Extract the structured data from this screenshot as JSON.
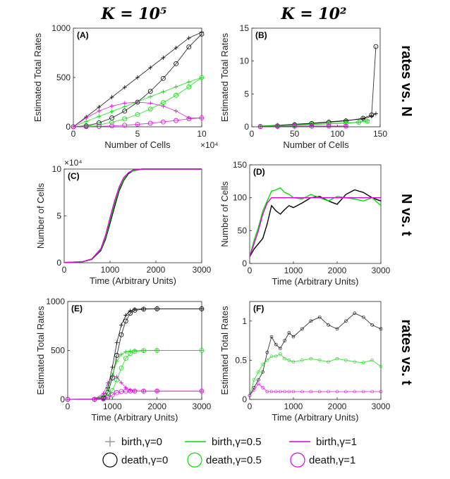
{
  "colors": {
    "gamma0": "#000000",
    "gamma05": "#00e000",
    "gamma1": "#e000e0"
  },
  "headers": {
    "col_left": "K = 10⁵",
    "col_right": "K = 10²"
  },
  "row_labels": [
    "rates vs. N",
    "N vs. t",
    "rates vs. t"
  ],
  "legend": {
    "birth": [
      "birth,γ=0",
      "birth,γ=0.5",
      "birth,γ=1"
    ],
    "death": [
      "death,γ=0",
      "death,γ=0.5",
      "death,γ=1"
    ]
  },
  "chart_data": [
    {
      "panel": "(A)",
      "type": "scatter",
      "xlabel": "Number of Cells",
      "ylabel": "Estimated Total Rates",
      "xlim": [
        0,
        10
      ],
      "x_exponent_label": "×10⁴",
      "ylim": [
        0,
        1000
      ],
      "xticks": [
        0,
        5,
        10
      ],
      "yticks": [
        0,
        500,
        1000
      ],
      "series": [
        {
          "name": "birth,γ=0",
          "marker": "+",
          "x": [
            0,
            1,
            2,
            3,
            4,
            5,
            6,
            7,
            8,
            9,
            10
          ],
          "y": [
            0,
            100,
            200,
            300,
            400,
            500,
            600,
            700,
            800,
            900,
            960
          ]
        },
        {
          "name": "death,γ=0",
          "marker": "o",
          "x": [
            0,
            1,
            2,
            3,
            4,
            5,
            6,
            7,
            8,
            9,
            10
          ],
          "y": [
            0,
            10,
            40,
            90,
            160,
            250,
            360,
            490,
            640,
            810,
            940
          ]
        },
        {
          "name": "birth,γ=0.5",
          "marker": "+",
          "x": [
            0,
            1,
            2,
            3,
            4,
            5,
            6,
            7,
            8,
            9,
            10
          ],
          "y": [
            0,
            55,
            105,
            155,
            205,
            255,
            305,
            355,
            405,
            455,
            500
          ]
        },
        {
          "name": "death,γ=0.5",
          "marker": "o",
          "x": [
            0,
            1,
            2,
            3,
            4,
            5,
            6,
            7,
            8,
            9,
            10
          ],
          "y": [
            0,
            5,
            20,
            45,
            80,
            125,
            180,
            245,
            320,
            405,
            500
          ]
        },
        {
          "name": "birth,γ=1",
          "marker": "+",
          "x": [
            0,
            1,
            2,
            3,
            4,
            5,
            6,
            7,
            8,
            9,
            10
          ],
          "y": [
            0,
            90,
            160,
            210,
            240,
            250,
            240,
            210,
            160,
            90,
            90
          ]
        },
        {
          "name": "death,γ=1",
          "marker": "o",
          "x": [
            0,
            1,
            2,
            3,
            4,
            5,
            6,
            7,
            8,
            9,
            10
          ],
          "y": [
            0,
            1,
            4,
            9,
            16,
            25,
            36,
            49,
            64,
            81,
            90
          ]
        }
      ]
    },
    {
      "panel": "(B)",
      "type": "scatter",
      "xlabel": "Number of Cells",
      "ylabel": "Estimated Total Rates",
      "xlim": [
        0,
        150
      ],
      "ylim": [
        0,
        15
      ],
      "xticks": [
        0,
        50,
        100,
        150
      ],
      "yticks": [
        0,
        5,
        10,
        15
      ],
      "series": [
        {
          "name": "birth,γ=0",
          "marker": "+",
          "x": [
            10,
            30,
            50,
            70,
            90,
            110,
            130,
            140,
            145
          ],
          "y": [
            0.1,
            0.25,
            0.4,
            0.55,
            0.75,
            0.95,
            1.2,
            1.6,
            2.0
          ]
        },
        {
          "name": "death,γ=0",
          "marker": "o",
          "x": [
            10,
            30,
            50,
            70,
            90,
            110,
            130,
            140,
            145
          ],
          "y": [
            0.05,
            0.15,
            0.3,
            0.5,
            0.7,
            0.9,
            1.3,
            1.8,
            12.2
          ]
        },
        {
          "name": "birth,γ=0.5",
          "marker": "+",
          "x": [
            10,
            30,
            50,
            70,
            90,
            110,
            125,
            135
          ],
          "y": [
            0.1,
            0.2,
            0.3,
            0.4,
            0.5,
            0.6,
            0.7,
            0.9
          ]
        },
        {
          "name": "death,γ=0.5",
          "marker": "o",
          "x": [
            10,
            30,
            50,
            70,
            90,
            110,
            125,
            135
          ],
          "y": [
            0.05,
            0.1,
            0.2,
            0.3,
            0.45,
            0.55,
            0.7,
            0.85
          ]
        },
        {
          "name": "birth,γ=1",
          "marker": "+",
          "x": [
            10,
            30,
            50,
            70,
            90,
            110
          ],
          "y": [
            0.05,
            0.08,
            0.1,
            0.1,
            0.1,
            0.1
          ]
        },
        {
          "name": "death,γ=1",
          "marker": "o",
          "x": [
            10,
            30,
            50,
            70,
            90,
            110
          ],
          "y": [
            0.02,
            0.05,
            0.08,
            0.09,
            0.1,
            0.1
          ]
        }
      ]
    },
    {
      "panel": "(C)",
      "type": "line",
      "xlabel": "Time (Arbitrary Units)",
      "ylabel": "Number of Cells",
      "xlim": [
        0,
        3000
      ],
      "ylim": [
        0,
        10
      ],
      "y_exponent_label": "×10⁴",
      "xticks": [
        0,
        1000,
        2000,
        3000
      ],
      "yticks": [
        0,
        5,
        10
      ],
      "series": [
        {
          "name": "γ=0",
          "x": [
            0,
            400,
            600,
            800,
            900,
            1000,
            1100,
            1200,
            1300,
            1400,
            1500,
            1700,
            2000,
            3000
          ],
          "y": [
            0.02,
            0.1,
            0.35,
            1.3,
            2.5,
            4.2,
            6.0,
            7.7,
            8.8,
            9.5,
            9.8,
            10,
            10,
            10
          ]
        },
        {
          "name": "γ=0.5",
          "x": [
            0,
            400,
            600,
            800,
            900,
            1000,
            1100,
            1200,
            1300,
            1400,
            1500,
            1700,
            2000,
            3000
          ],
          "y": [
            0.02,
            0.1,
            0.38,
            1.4,
            2.7,
            4.5,
            6.3,
            7.9,
            8.9,
            9.6,
            9.8,
            10,
            10,
            10
          ]
        },
        {
          "name": "γ=1",
          "x": [
            0,
            400,
            600,
            800,
            900,
            1000,
            1100,
            1200,
            1300,
            1400,
            1500,
            1700,
            2000,
            3000
          ],
          "y": [
            0.02,
            0.11,
            0.4,
            1.5,
            2.9,
            4.8,
            6.6,
            8.1,
            9.1,
            9.6,
            9.9,
            10,
            10,
            10
          ]
        }
      ]
    },
    {
      "panel": "(D)",
      "type": "line",
      "xlabel": "Time (Arbitrary Units)",
      "ylabel": "Number of Cells",
      "xlim": [
        0,
        3000
      ],
      "ylim": [
        0,
        150
      ],
      "xticks": [
        0,
        1000,
        2000,
        3000
      ],
      "yticks": [
        0,
        50,
        100,
        150
      ],
      "series": [
        {
          "name": "γ=0",
          "x": [
            0,
            100,
            200,
            300,
            400,
            500,
            600,
            700,
            800,
            900,
            1000,
            1200,
            1400,
            1600,
            1800,
            2000,
            2200,
            2400,
            2600,
            2800,
            3000
          ],
          "y": [
            10,
            22,
            30,
            38,
            60,
            88,
            80,
            75,
            82,
            88,
            85,
            92,
            100,
            102,
            95,
            90,
            105,
            112,
            108,
            100,
            95
          ]
        },
        {
          "name": "γ=0.5",
          "x": [
            0,
            100,
            200,
            300,
            400,
            500,
            600,
            700,
            800,
            900,
            1000,
            1200,
            1400,
            1600,
            1800,
            2000,
            2200,
            2400,
            2600,
            2800,
            3000
          ],
          "y": [
            10,
            35,
            55,
            80,
            95,
            110,
            112,
            115,
            108,
            105,
            100,
            98,
            105,
            100,
            95,
            102,
            100,
            98,
            95,
            100,
            88
          ]
        },
        {
          "name": "γ=1",
          "x": [
            0,
            100,
            200,
            300,
            400,
            500,
            600,
            700,
            800,
            900,
            1000,
            1200,
            1400,
            1600,
            1800,
            2000,
            2200,
            2400,
            2600,
            2800,
            3000
          ],
          "y": [
            10,
            30,
            50,
            75,
            92,
            100,
            100,
            100,
            100,
            100,
            100,
            100,
            100,
            100,
            100,
            100,
            100,
            100,
            100,
            100,
            100
          ]
        }
      ]
    },
    {
      "panel": "(E)",
      "type": "scatter",
      "xlabel": "Time (Arbitrary Units)",
      "ylabel": "Estimated Total Rates",
      "xlim": [
        0,
        3000
      ],
      "ylim": [
        0,
        1000
      ],
      "xticks": [
        0,
        1000,
        2000,
        3000
      ],
      "yticks": [
        0,
        500,
        1000
      ],
      "series": [
        {
          "name": "birth,γ=0",
          "marker": "+",
          "x": [
            0,
            600,
            800,
            900,
            1000,
            1100,
            1200,
            1300,
            1400,
            1500,
            1700,
            2000,
            3000
          ],
          "y": [
            0,
            5,
            30,
            120,
            330,
            580,
            760,
            860,
            905,
            920,
            925,
            925,
            925
          ]
        },
        {
          "name": "death,γ=0",
          "marker": "o",
          "x": [
            0,
            600,
            800,
            900,
            1000,
            1100,
            1200,
            1300,
            1400,
            1500,
            1700,
            2000,
            3000
          ],
          "y": [
            0,
            2,
            15,
            70,
            220,
            450,
            660,
            800,
            880,
            910,
            922,
            925,
            925
          ]
        },
        {
          "name": "birth,γ=0.5",
          "marker": "+",
          "x": [
            0,
            600,
            800,
            900,
            1000,
            1100,
            1200,
            1300,
            1400,
            1500,
            1700,
            2000,
            3000
          ],
          "y": [
            0,
            5,
            40,
            110,
            250,
            390,
            460,
            485,
            495,
            498,
            500,
            500,
            500
          ]
        },
        {
          "name": "death,γ=0.5",
          "marker": "o",
          "x": [
            0,
            600,
            800,
            900,
            1000,
            1100,
            1200,
            1300,
            1400,
            1500,
            1700,
            2000,
            3000
          ],
          "y": [
            0,
            1,
            8,
            30,
            90,
            200,
            320,
            420,
            470,
            490,
            498,
            500,
            500
          ]
        },
        {
          "name": "birth,γ=1",
          "marker": "+",
          "x": [
            0,
            600,
            800,
            900,
            1000,
            1100,
            1200,
            1300,
            1400,
            1500,
            1700,
            2000,
            3000
          ],
          "y": [
            0,
            5,
            60,
            170,
            240,
            230,
            170,
            120,
            95,
            88,
            85,
            85,
            85
          ]
        },
        {
          "name": "death,γ=1",
          "marker": "o",
          "x": [
            0,
            600,
            800,
            900,
            1000,
            1100,
            1200,
            1300,
            1400,
            1500,
            1700,
            2000,
            3000
          ],
          "y": [
            0,
            0,
            5,
            20,
            45,
            70,
            80,
            85,
            85,
            85,
            85,
            85,
            85
          ]
        }
      ]
    },
    {
      "panel": "(F)",
      "type": "scatter",
      "xlabel": "Time (Arbitrary Units)",
      "ylabel": "Estimated Total Rates",
      "xlim": [
        0,
        3000
      ],
      "ylim": [
        0,
        1.25
      ],
      "xticks": [
        0,
        1000,
        2000,
        3000
      ],
      "yticks": [
        0,
        0.5,
        1
      ],
      "series": [
        {
          "name": "γ=0",
          "x": [
            0,
            100,
            200,
            300,
            400,
            500,
            600,
            700,
            800,
            900,
            1000,
            1200,
            1400,
            1600,
            1800,
            2000,
            2200,
            2400,
            2600,
            2800,
            3000
          ],
          "y": [
            0.05,
            0.15,
            0.25,
            0.35,
            0.6,
            0.8,
            0.7,
            0.65,
            0.75,
            0.85,
            0.8,
            0.9,
            1.0,
            1.05,
            0.95,
            0.9,
            1.0,
            1.1,
            1.05,
            0.95,
            0.9
          ]
        },
        {
          "name": "γ=0.5",
          "x": [
            0,
            100,
            200,
            300,
            400,
            500,
            600,
            700,
            800,
            900,
            1000,
            1200,
            1400,
            1600,
            1800,
            2000,
            2200,
            2400,
            2600,
            2800,
            3000
          ],
          "y": [
            0.05,
            0.25,
            0.35,
            0.45,
            0.5,
            0.55,
            0.55,
            0.58,
            0.52,
            0.5,
            0.48,
            0.5,
            0.52,
            0.5,
            0.48,
            0.52,
            0.5,
            0.48,
            0.47,
            0.5,
            0.42
          ]
        },
        {
          "name": "γ=1",
          "x": [
            0,
            100,
            200,
            300,
            400,
            500,
            600,
            700,
            800,
            900,
            1000,
            1200,
            1400,
            1600,
            1800,
            2000,
            2200,
            2400,
            2600,
            2800,
            3000
          ],
          "y": [
            0.05,
            0.12,
            0.2,
            0.15,
            0.1,
            0.1,
            0.1,
            0.1,
            0.1,
            0.1,
            0.1,
            0.1,
            0.1,
            0.1,
            0.1,
            0.1,
            0.1,
            0.1,
            0.1,
            0.1,
            0.1
          ]
        }
      ]
    }
  ]
}
